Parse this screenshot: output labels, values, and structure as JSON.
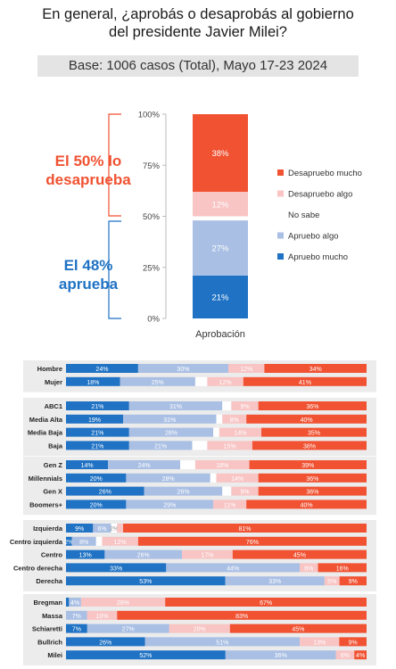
{
  "title_line1": "En general, ¿aprobás o desaprobás al gobierno",
  "title_line2": "del presidente Javier Milei?",
  "subtitle": "Base: 1006 casos (Total), Mayo 17-23 2024",
  "annotation_disapprove_line1": "El 50% lo",
  "annotation_disapprove_line2": "desaprueba",
  "annotation_approve_line1": "El 48%",
  "annotation_approve_line2": "aprueba",
  "colors": {
    "desapruebo_mucho": "#f05232",
    "desapruebo_algo": "#f8c4c4",
    "no_sabe": "#ffffff",
    "apruebo_algo": "#a9bfe4",
    "apruebo_mucho": "#1f72c4",
    "panel_bg": "#ececec"
  },
  "chart_data": [
    {
      "type": "bar",
      "stacked": true,
      "categories": [
        "Aprobación"
      ],
      "y_ticks": [
        "0%",
        "25%",
        "50%",
        "75%",
        "100%"
      ],
      "ylim": [
        0,
        100
      ],
      "legend_position": "right",
      "series": [
        {
          "name": "Apruebo mucho",
          "values": [
            21
          ],
          "label": "21%"
        },
        {
          "name": "Apruebo algo",
          "values": [
            27
          ],
          "label": "27%"
        },
        {
          "name": "No sabe",
          "values": [
            2
          ],
          "label": ""
        },
        {
          "name": "Desapruebo algo",
          "values": [
            12
          ],
          "label": "12%"
        },
        {
          "name": "Desapruebo mucho",
          "values": [
            38
          ],
          "label": "38%"
        }
      ]
    },
    {
      "type": "bar",
      "stacked": true,
      "orientation": "horizontal",
      "series_order": [
        "Apruebo mucho",
        "Apruebo algo",
        "No sabe",
        "Desapruebo algo",
        "Desapruebo mucho"
      ],
      "groups": [
        {
          "rows": [
            {
              "label": "Hombre",
              "values": [
                24,
                30,
                0,
                12,
                34
              ],
              "labels": [
                "24%",
                "30%",
                "",
                "12%",
                "34%"
              ]
            },
            {
              "label": "Mujer",
              "values": [
                18,
                25,
                4,
                12,
                41
              ],
              "labels": [
                "18%",
                "25%",
                "",
                "12%",
                "41%"
              ]
            }
          ]
        },
        {
          "rows": [
            {
              "label": "ABC1",
              "values": [
                21,
                31,
                3,
                9,
                36
              ],
              "labels": [
                "21%",
                "31%",
                "",
                "9%",
                "36%"
              ]
            },
            {
              "label": "Media Alta",
              "values": [
                19,
                31,
                2,
                8,
                40
              ],
              "labels": [
                "19%",
                "31%",
                "",
                "8%",
                "40%"
              ]
            },
            {
              "label": "Media Baja",
              "values": [
                21,
                28,
                2,
                14,
                35
              ],
              "labels": [
                "21%",
                "28%",
                "",
                "14%",
                "35%"
              ]
            },
            {
              "label": "Baja",
              "values": [
                21,
                21,
                5,
                15,
                38
              ],
              "labels": [
                "21%",
                "21%",
                "",
                "15%",
                "38%"
              ]
            }
          ]
        },
        {
          "rows": [
            {
              "label": "Gen Z",
              "values": [
                14,
                24,
                5,
                18,
                39
              ],
              "labels": [
                "14%",
                "24%",
                "",
                "18%",
                "39%"
              ]
            },
            {
              "label": "Millennials",
              "values": [
                20,
                28,
                2,
                14,
                36
              ],
              "labels": [
                "20%",
                "28%",
                "",
                "14%",
                "36%"
              ]
            },
            {
              "label": "Gen X",
              "values": [
                26,
                26,
                3,
                9,
                36
              ],
              "labels": [
                "26%",
                "26%",
                "",
                "9%",
                "36%"
              ]
            },
            {
              "label": "Boomers+",
              "values": [
                20,
                29,
                0,
                11,
                40
              ],
              "labels": [
                "20%",
                "29%",
                "",
                "11%",
                "40%"
              ]
            }
          ]
        },
        {
          "rows": [
            {
              "label": "Izquierda",
              "values": [
                9,
                6,
                2,
                2,
                81
              ],
              "labels": [
                "9%",
                "6%",
                "2%",
                "",
                "81%"
              ]
            },
            {
              "label": "Centro izquierda",
              "values": [
                2,
                8,
                2,
                12,
                76
              ],
              "labels": [
                "2%",
                "8%",
                "",
                "12%",
                "76%"
              ]
            },
            {
              "label": "Centro",
              "values": [
                13,
                26,
                0,
                17,
                45
              ],
              "labels": [
                "13%",
                "26%",
                "",
                "17%",
                "45%"
              ]
            },
            {
              "label": "Centro derecha",
              "values": [
                33,
                44,
                0,
                6,
                16
              ],
              "labels": [
                "33%",
                "44%",
                "",
                "6%",
                "16%"
              ]
            },
            {
              "label": "Derecha",
              "values": [
                53,
                33,
                0,
                5,
                9
              ],
              "labels": [
                "53%",
                "33%",
                "",
                "5%",
                "9%"
              ]
            }
          ]
        },
        {
          "rows": [
            {
              "label": "Bregman",
              "values": [
                1,
                4,
                0,
                28,
                67
              ],
              "labels": [
                "",
                "4%",
                "",
                "28%",
                "67%"
              ]
            },
            {
              "label": "Massa",
              "values": [
                0,
                7,
                0,
                10,
                83
              ],
              "labels": [
                "",
                "7%",
                "",
                "10%",
                "83%"
              ]
            },
            {
              "label": "Schiaretti",
              "values": [
                7,
                27,
                0,
                20,
                45
              ],
              "labels": [
                "7%",
                "27%",
                "",
                "20%",
                "45%"
              ]
            },
            {
              "label": "Bullrich",
              "values": [
                26,
                51,
                0,
                13,
                9
              ],
              "labels": [
                "26%",
                "51%",
                "",
                "13%",
                "9%"
              ]
            },
            {
              "label": "Milei",
              "values": [
                52,
                36,
                0,
                6,
                4
              ],
              "labels": [
                "52%",
                "36%",
                "",
                "6%",
                "4%"
              ]
            }
          ]
        }
      ]
    }
  ]
}
